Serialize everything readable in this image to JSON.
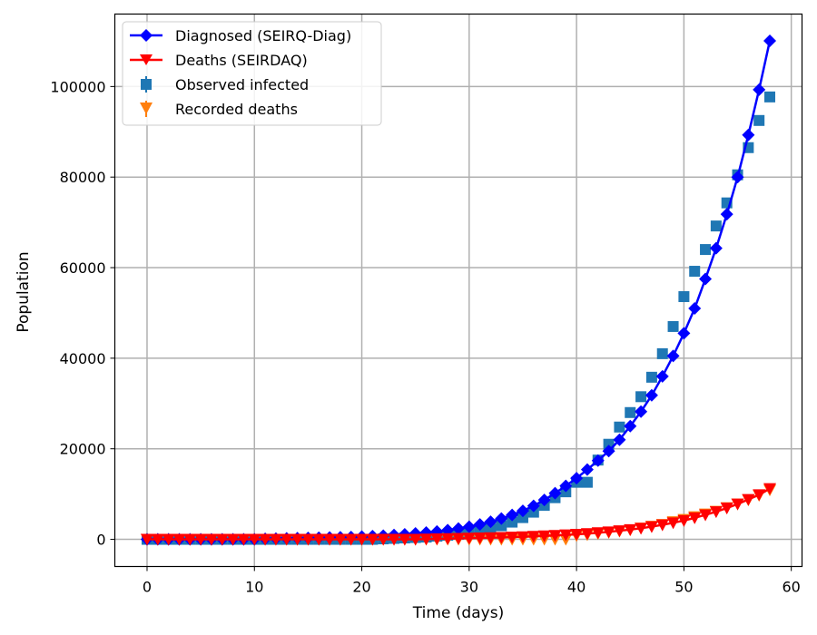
{
  "chart_data": {
    "type": "line",
    "xlabel": "Time (days)",
    "ylabel": "Population",
    "xlim": [
      -3,
      61
    ],
    "ylim": [
      -6000,
      116000
    ],
    "xticks": [
      0,
      10,
      20,
      30,
      40,
      50,
      60
    ],
    "yticks": [
      0,
      20000,
      40000,
      60000,
      80000,
      100000
    ],
    "grid": true,
    "legend_position": "top-left",
    "x": [
      0,
      1,
      2,
      3,
      4,
      5,
      6,
      7,
      8,
      9,
      10,
      11,
      12,
      13,
      14,
      15,
      16,
      17,
      18,
      19,
      20,
      21,
      22,
      23,
      24,
      25,
      26,
      27,
      28,
      29,
      30,
      31,
      32,
      33,
      34,
      35,
      36,
      37,
      38,
      39,
      40,
      41,
      42,
      43,
      44,
      45,
      46,
      47,
      48,
      49,
      50,
      51,
      52,
      53,
      54,
      55,
      56,
      57,
      58
    ],
    "series": [
      {
        "name": "Diagnosed (SEIRQ-Diag)",
        "kind": "line-marker",
        "marker": "diamond",
        "color": "#0000ff",
        "values": [
          0,
          0,
          0,
          0,
          0,
          0,
          0,
          0,
          0,
          0,
          0,
          100,
          150,
          200,
          250,
          300,
          350,
          400,
          450,
          500,
          600,
          700,
          800,
          950,
          1100,
          1300,
          1500,
          1750,
          2050,
          2400,
          2800,
          3300,
          3900,
          4600,
          5400,
          6300,
          7400,
          8700,
          10200,
          11800,
          13500,
          15400,
          17400,
          19500,
          22000,
          25000,
          28200,
          31800,
          36000,
          40500,
          45500,
          51000,
          57500,
          64300,
          71800,
          80000,
          89300,
          99300,
          110100
        ]
      },
      {
        "name": "Deaths (SEIRDAQ)",
        "kind": "line-marker",
        "marker": "triangle-down",
        "color": "#ff0000",
        "values": [
          0,
          0,
          0,
          0,
          0,
          0,
          0,
          0,
          0,
          0,
          0,
          0,
          0,
          0,
          0,
          0,
          0,
          0,
          0,
          0,
          0,
          0,
          0,
          0,
          0,
          0,
          50,
          100,
          150,
          200,
          250,
          300,
          350,
          400,
          480,
          560,
          650,
          750,
          860,
          980,
          1100,
          1250,
          1450,
          1650,
          1900,
          2150,
          2450,
          2800,
          3200,
          3650,
          4150,
          4750,
          5400,
          6100,
          6900,
          7800,
          8800,
          9850,
          11200
        ]
      },
      {
        "name": "Observed infected",
        "kind": "marker",
        "marker": "square",
        "color": "#1f77b4",
        "values": [
          0,
          0,
          0,
          0,
          0,
          0,
          0,
          0,
          0,
          0,
          0,
          0,
          0,
          0,
          0,
          0,
          0,
          0,
          0,
          0,
          0,
          0,
          100,
          200,
          300,
          400,
          500,
          700,
          900,
          1100,
          1400,
          1800,
          2300,
          3000,
          3800,
          4800,
          6000,
          7500,
          9200,
          10500,
          12600,
          12600,
          17500,
          21000,
          24800,
          28000,
          31500,
          35800,
          41000,
          47000,
          53600,
          59200,
          64000,
          69200,
          74300,
          80500,
          86500,
          92500,
          97700
        ]
      },
      {
        "name": "Recorded deaths",
        "kind": "marker",
        "marker": "triangle-down",
        "color": "#ff7f0e",
        "values": [
          0,
          0,
          0,
          0,
          0,
          0,
          0,
          0,
          0,
          0,
          0,
          0,
          0,
          0,
          0,
          0,
          0,
          0,
          0,
          0,
          0,
          0,
          0,
          0,
          0,
          0,
          0,
          0,
          0,
          0,
          0,
          0,
          0,
          0,
          0,
          0,
          0,
          0,
          0,
          0,
          800,
          1000,
          1250,
          1500,
          1800,
          2100,
          2500,
          2900,
          3300,
          3900,
          4400,
          5000,
          5600,
          6200,
          7000,
          7800,
          8700,
          9700,
          10900
        ]
      }
    ]
  }
}
